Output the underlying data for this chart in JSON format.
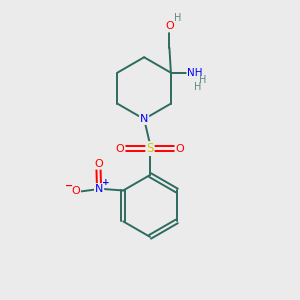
{
  "background_color": "#ebebeb",
  "bond_color": "#2d6b5e",
  "atom_colors": {
    "O": "#ff0000",
    "N": "#0000ff",
    "S": "#cccc00",
    "C": "#2d6b5e",
    "H": "#5a8a80"
  },
  "figsize": [
    3.0,
    3.0
  ],
  "dpi": 100
}
